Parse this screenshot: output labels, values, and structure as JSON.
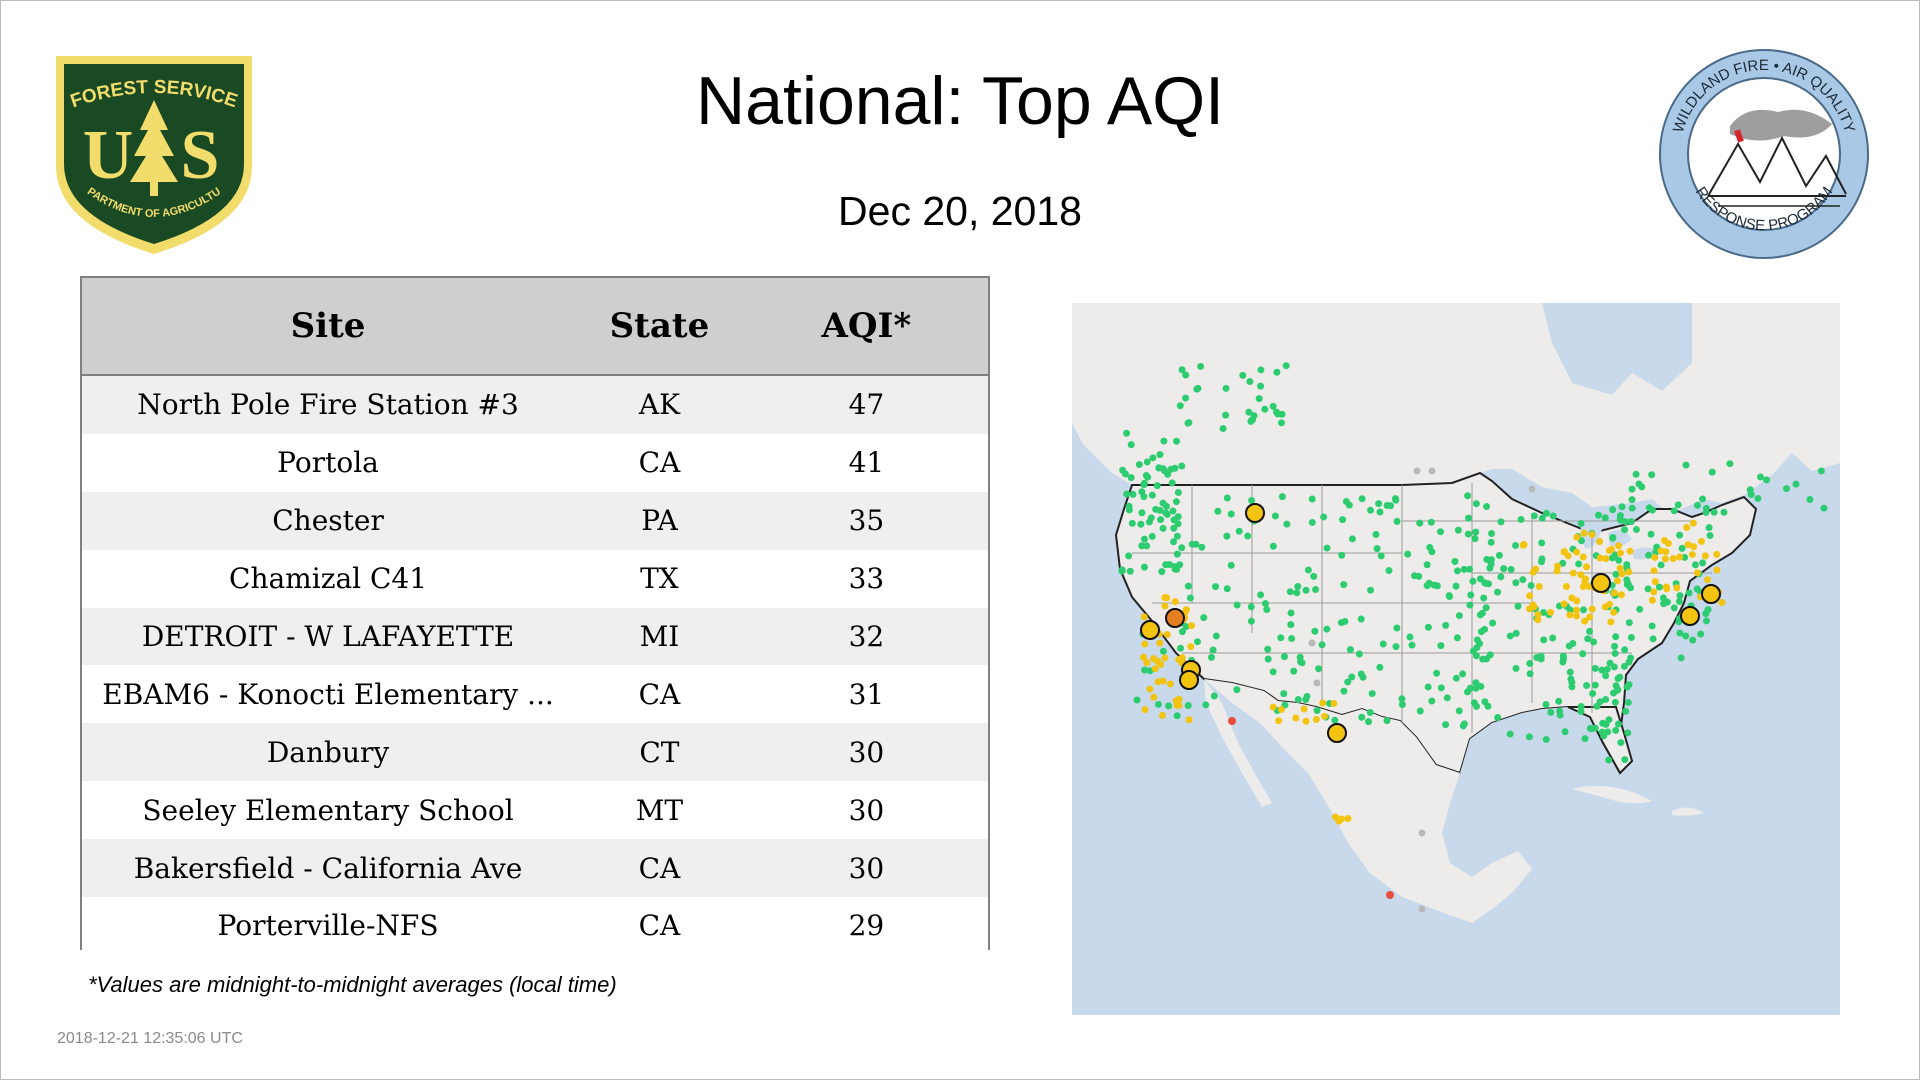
{
  "header": {
    "title": "National: Top AQI",
    "date": "Dec 20, 2018"
  },
  "logos": {
    "left": {
      "icon": "forest-service-shield",
      "top_text": "FOREST SERVICE",
      "letters": "U S",
      "bottom_text": "DEPARTMENT OF AGRICULTURE",
      "colors": {
        "fill": "#1a4a24",
        "gold": "#f2dc6b"
      }
    },
    "right": {
      "icon": "wildland-fire-air-quality-seal",
      "top_text": "WILDLAND FIRE • AIR QUALITY",
      "bottom_text": "RESPONSE PROGRAM",
      "colors": {
        "ring": "#a9c8e6",
        "smoke": "#9e9e9e",
        "flag": "#d6232a"
      }
    }
  },
  "table": {
    "headers": {
      "site": "Site",
      "state": "State",
      "aqi": "AQI*"
    },
    "rows": [
      {
        "site": "North Pole Fire Station #3",
        "state": "AK",
        "aqi": "47"
      },
      {
        "site": "Portola",
        "state": "CA",
        "aqi": "41"
      },
      {
        "site": "Chester",
        "state": "PA",
        "aqi": "35"
      },
      {
        "site": "Chamizal C41",
        "state": "TX",
        "aqi": "33"
      },
      {
        "site": "DETROIT - W LAFAYETTE",
        "state": "MI",
        "aqi": "32"
      },
      {
        "site": "EBAM6 - Konocti Elementary ...",
        "state": "CA",
        "aqi": "31"
      },
      {
        "site": "Danbury",
        "state": "CT",
        "aqi": "30"
      },
      {
        "site": "Seeley Elementary School",
        "state": "MT",
        "aqi": "30"
      },
      {
        "site": "Bakersfield - California Ave",
        "state": "CA",
        "aqi": "30"
      },
      {
        "site": "Porterville-NFS",
        "state": "CA",
        "aqi": "29"
      }
    ]
  },
  "footnote": "*Values are midnight-to-midnight averages (local time)",
  "timestamp": "2018-12-21 12:35:06 UTC",
  "map": {
    "colors": {
      "water": "#c7d9ea",
      "land": "#eeeceb",
      "border": "#222222",
      "state_lines": "#9a9a9a",
      "good": "#2ecc71",
      "moderate": "#f2c40f",
      "usg": "#e67e22",
      "unhealthy": "#e74c3c",
      "nodata": "#b9b9b9"
    }
  }
}
